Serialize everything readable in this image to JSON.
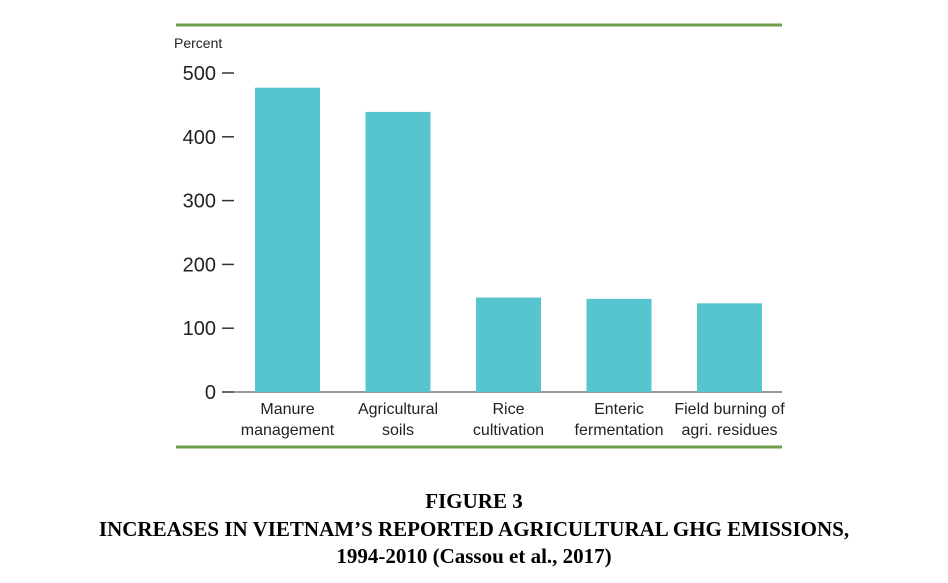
{
  "figure": {
    "number_label": "FIGURE 3",
    "title_line1": "INCREASES IN VIETNAM’S REPORTED AGRICULTURAL GHG EMISSIONS,",
    "title_line2": "1994-2010 (Cassou et al., 2017)"
  },
  "colors": {
    "bar": "#56C5D0",
    "rule": "#6E9E4B",
    "axis": "#333333"
  },
  "chart_data": {
    "type": "bar",
    "ylabel": "Percent",
    "xlabel": "",
    "ylim": [
      0,
      500
    ],
    "yticks": [
      0,
      100,
      200,
      300,
      400,
      500
    ],
    "grid": false,
    "categories": [
      [
        "Manure",
        "management"
      ],
      [
        "Agricultural",
        "soils"
      ],
      [
        "Rice",
        "cultivation"
      ],
      [
        "Enteric",
        "fermentation"
      ],
      [
        "Field burning of",
        "agri. residues"
      ]
    ],
    "values": [
      477,
      439,
      148,
      146,
      139
    ]
  }
}
